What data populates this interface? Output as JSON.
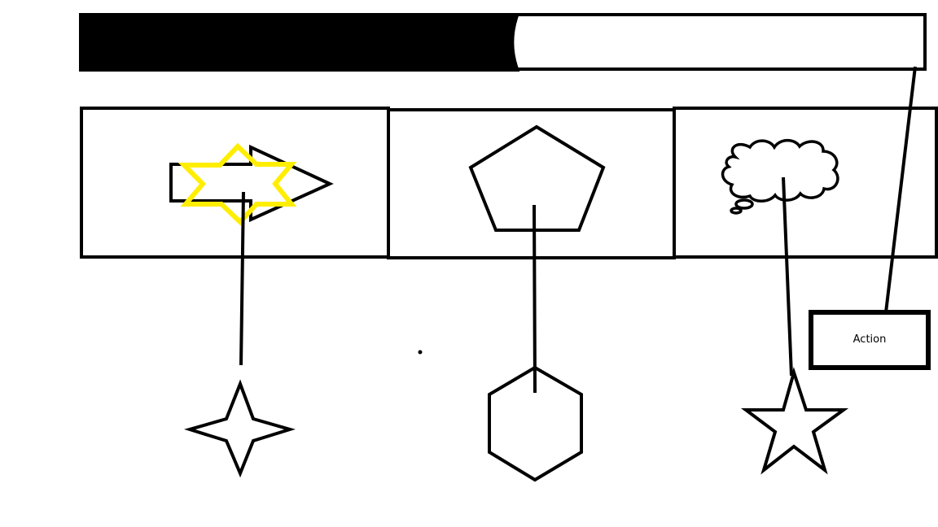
{
  "colors": {
    "stroke": "#000000",
    "background": "#ffffff",
    "highlight": "#ffee00"
  },
  "progress_bar": {
    "fill_fraction": 0.52
  },
  "panels": [
    {
      "icon": "arrow-right-icon",
      "overlay_icon": "six-point-star-icon"
    },
    {
      "icon": "pentagon-icon"
    },
    {
      "icon": "thought-cloud-icon"
    }
  ],
  "targets": [
    {
      "icon": "four-point-star-icon"
    },
    {
      "icon": "hexagon-icon"
    },
    {
      "icon": "five-point-star-icon"
    }
  ],
  "action_button": {
    "label": "Action"
  }
}
